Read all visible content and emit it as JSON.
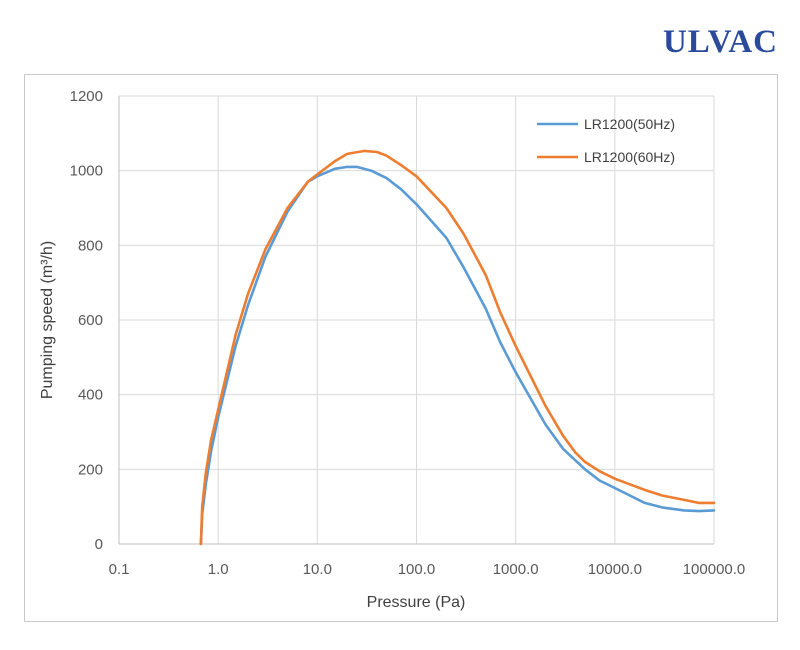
{
  "brand": {
    "logo_text": "ULVAC",
    "logo_color": "#2b4a9c"
  },
  "chart_data": {
    "type": "line",
    "title": "",
    "xlabel": "Pressure (Pa)",
    "ylabel": "Pumping speed (m³/h)",
    "xscale": "log",
    "xlim": [
      0.1,
      100000
    ],
    "ylim": [
      0,
      1200
    ],
    "xticks": [
      0.1,
      1,
      10,
      100,
      1000,
      10000,
      100000
    ],
    "xtick_labels": [
      "0.1",
      "1.0",
      "10.0",
      "100.0",
      "1000.0",
      "10000.0",
      "100000.0"
    ],
    "yticks": [
      0,
      200,
      400,
      600,
      800,
      1000,
      1200
    ],
    "ytick_labels": [
      "0",
      "200",
      "400",
      "600",
      "800",
      "1000",
      "1200"
    ],
    "grid": true,
    "legend_position": "top-right",
    "series": [
      {
        "name": "LR1200(50Hz)",
        "color": "#5b9bd5",
        "points": [
          [
            0.67,
            0
          ],
          [
            0.69,
            80
          ],
          [
            0.75,
            160
          ],
          [
            0.85,
            250
          ],
          [
            1.0,
            340
          ],
          [
            1.5,
            530
          ],
          [
            2.0,
            640
          ],
          [
            3.0,
            770
          ],
          [
            5.0,
            890
          ],
          [
            8.0,
            970
          ],
          [
            10,
            985
          ],
          [
            15,
            1005
          ],
          [
            20,
            1010
          ],
          [
            25,
            1010
          ],
          [
            35,
            1000
          ],
          [
            50,
            980
          ],
          [
            70,
            950
          ],
          [
            100,
            910
          ],
          [
            200,
            820
          ],
          [
            300,
            740
          ],
          [
            500,
            630
          ],
          [
            700,
            540
          ],
          [
            1000,
            460
          ],
          [
            2000,
            320
          ],
          [
            3000,
            255
          ],
          [
            5000,
            200
          ],
          [
            7000,
            170
          ],
          [
            10000,
            150
          ],
          [
            20000,
            110
          ],
          [
            30000,
            98
          ],
          [
            50000,
            90
          ],
          [
            70000,
            88
          ],
          [
            100000,
            90
          ]
        ]
      },
      {
        "name": "LR1200(60Hz)",
        "color": "#ed7d31",
        "points": [
          [
            0.67,
            0
          ],
          [
            0.69,
            100
          ],
          [
            0.75,
            190
          ],
          [
            0.85,
            280
          ],
          [
            1.0,
            360
          ],
          [
            1.5,
            560
          ],
          [
            2.0,
            670
          ],
          [
            3.0,
            790
          ],
          [
            5.0,
            900
          ],
          [
            8.0,
            970
          ],
          [
            10,
            990
          ],
          [
            15,
            1025
          ],
          [
            20,
            1045
          ],
          [
            30,
            1053
          ],
          [
            40,
            1050
          ],
          [
            50,
            1040
          ],
          [
            70,
            1015
          ],
          [
            100,
            985
          ],
          [
            200,
            900
          ],
          [
            300,
            830
          ],
          [
            500,
            720
          ],
          [
            700,
            620
          ],
          [
            1000,
            530
          ],
          [
            2000,
            370
          ],
          [
            3000,
            290
          ],
          [
            4000,
            245
          ],
          [
            5000,
            220
          ],
          [
            7000,
            195
          ],
          [
            10000,
            175
          ],
          [
            20000,
            145
          ],
          [
            30000,
            130
          ],
          [
            50000,
            118
          ],
          [
            70000,
            110
          ],
          [
            100000,
            110
          ]
        ]
      }
    ]
  }
}
